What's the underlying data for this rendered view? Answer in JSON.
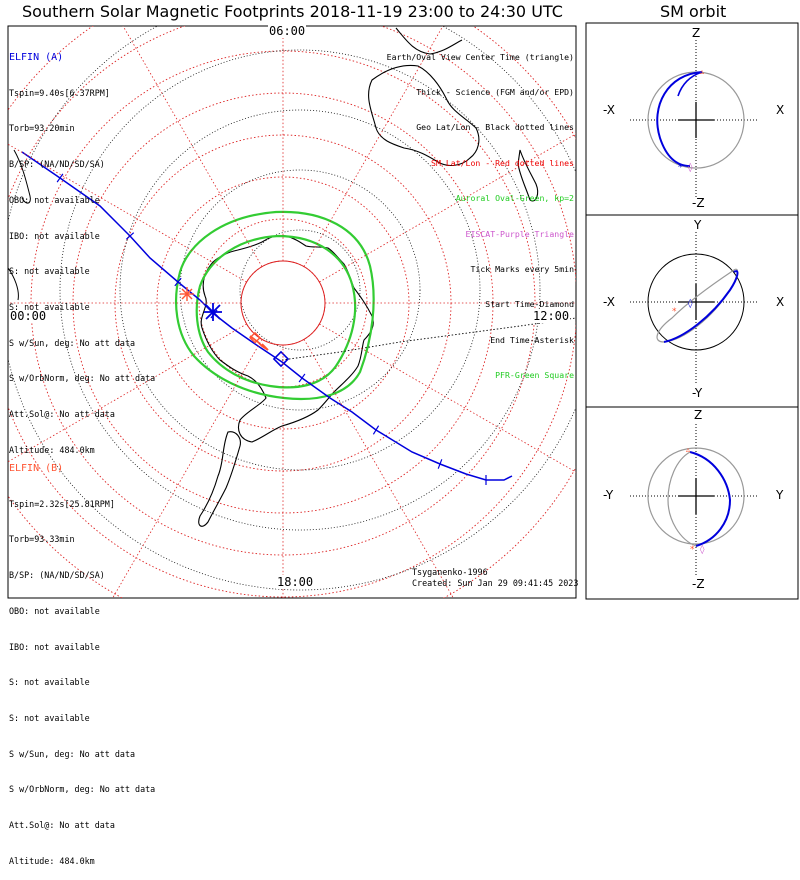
{
  "title": "Southern Solar Magnetic Footprints 2018-11-19 23:00 to 24:30 UTC",
  "orbit_title": "SM orbit",
  "clock_labels": {
    "t06": "06:00",
    "t00": "00:00",
    "t12": "12:00",
    "t18": "18:00"
  },
  "sat_a": {
    "name": "ELFIN (A)",
    "color": "#0000dd",
    "lines": [
      "Tspin=9.40s[6.37RPM]",
      "Torb=93.20min",
      "B/SP: (NA/ND/SD/SA)",
      "OBO: not available",
      "IBO: not available",
      "S: not available",
      "S: not available",
      "S w/Sun, deg: No att data",
      "S w/OrbNorm, deg: No att data",
      "Att.Sol@: No att data",
      "Altitude: 484.0km"
    ]
  },
  "sat_b": {
    "name": "ELFIN (B)",
    "color": "#ff5533",
    "lines": [
      "Tspin=2.32s[25.81RPM]",
      "Torb=93.33min",
      "B/SP: (NA/ND/SD/SA)",
      "OBO: not available",
      "IBO: not available",
      "S: not available",
      "S: not available",
      "S w/Sun, deg: No att data",
      "S w/OrbNorm, deg: No att data",
      "Att.Sol@: No att data",
      "Altitude: 484.0km"
    ]
  },
  "legend": [
    {
      "text": "Earth/Oval View Center Time (triangle)",
      "color": "#000000"
    },
    {
      "text": "Thick - Science (FGM and/or EPD)",
      "color": "#000000"
    },
    {
      "text": "Geo Lat/Lon - Black dotted lines",
      "color": "#000000"
    },
    {
      "text": "SM Lat/Lon - Red dotted lines",
      "color": "#ee0000"
    },
    {
      "text": "Auroral Oval-Green, kp=2",
      "color": "#22cc22"
    },
    {
      "text": "EISCAT-Purple Triangle",
      "color": "#cc55cc"
    },
    {
      "text": "Tick Marks every 5min",
      "color": "#000000"
    },
    {
      "text": "Start Time-Diamond",
      "color": "#000000"
    },
    {
      "text": "End Time-Asterisk",
      "color": "#000000"
    },
    {
      "text": "PFR-Green Square",
      "color": "#22cc22"
    }
  ],
  "orbit_panels": [
    {
      "top": "Z",
      "bottom": "-Z",
      "left": "-X",
      "right": "X"
    },
    {
      "top": "Y",
      "bottom": "-Y",
      "left": "-X",
      "right": "X"
    },
    {
      "top": "Z",
      "bottom": "-Z",
      "left": "-Y",
      "right": "Y"
    }
  ],
  "credits": {
    "model": "Tsyganenko-1996",
    "created": "Created: Sun Jan 29 09:41:45 2023"
  },
  "chart_data": {
    "type": "scatter",
    "title": "Southern Solar Magnetic Footprints 2018-11-19 23:00 to 24:30 UTC",
    "projection": "polar, magnetic local time around the rim",
    "rim_labels": [
      "06:00",
      "12:00",
      "18:00",
      "00:00"
    ],
    "auroral_oval_kp": 2,
    "tick_interval_min": 5,
    "series": [
      {
        "name": "ELFIN (A)",
        "color": "#0000dd"
      },
      {
        "name": "ELFIN (B)",
        "color": "#ff5533"
      }
    ]
  }
}
